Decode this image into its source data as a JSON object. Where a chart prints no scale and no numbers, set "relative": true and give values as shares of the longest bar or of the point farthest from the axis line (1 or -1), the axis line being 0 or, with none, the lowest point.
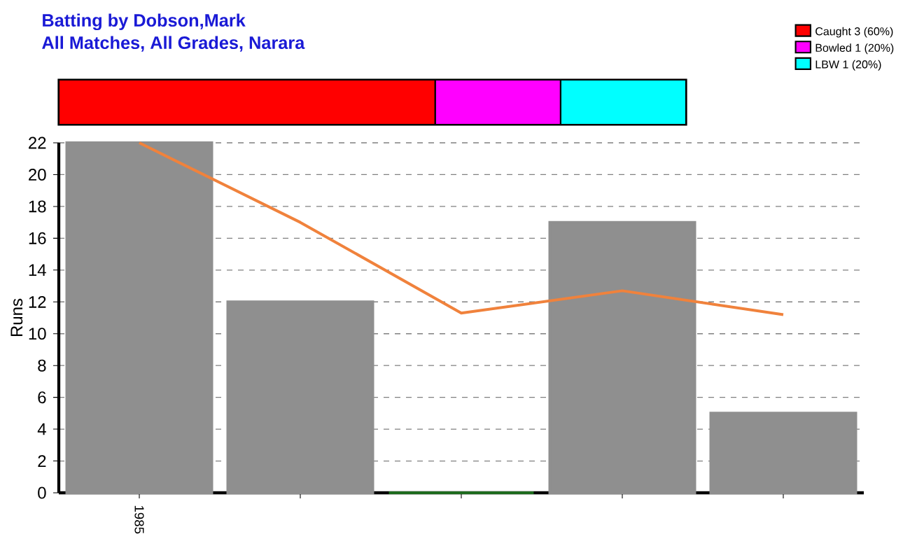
{
  "chart_data": [
    {
      "type": "bar",
      "title": "Batting by Dobson,Mark",
      "subtitle": "All Matches, All Grades, Narara",
      "orientation": "horizontal",
      "stacked": true,
      "relative": true,
      "categories": [
        null
      ],
      "legend": "top right",
      "series": [
        {
          "name": "Caught 3 (60%)",
          "color": "#ff0000",
          "values": [
            0.6
          ]
        },
        {
          "name": "Bowled 1 (20%)",
          "color": "#ff00ff",
          "values": [
            0.2
          ]
        },
        {
          "name": "LBW 1 (20%)",
          "color": "#00ffff",
          "values": [
            0.2
          ]
        }
      ]
    },
    {
      "type": "bar",
      "ylabel": "Runs",
      "categories": [
        "1985",
        null,
        null,
        null,
        null
      ],
      "ylim": [
        0,
        22
      ],
      "yticks": [
        0,
        2,
        4,
        6,
        8,
        10,
        12,
        14,
        16,
        18,
        20,
        22
      ],
      "grid": "y",
      "series": [
        {
          "values": [
            22,
            12,
            0,
            17,
            5
          ],
          "colors": [
            "#8f8f8f",
            "#8f8f8f",
            "#1e6b1e",
            "#8f8f8f",
            "#8f8f8f"
          ]
        },
        {
          "type": "line",
          "color": "#f0823c",
          "values": [
            22,
            17,
            11.3,
            12.7,
            11.2
          ]
        }
      ]
    }
  ]
}
